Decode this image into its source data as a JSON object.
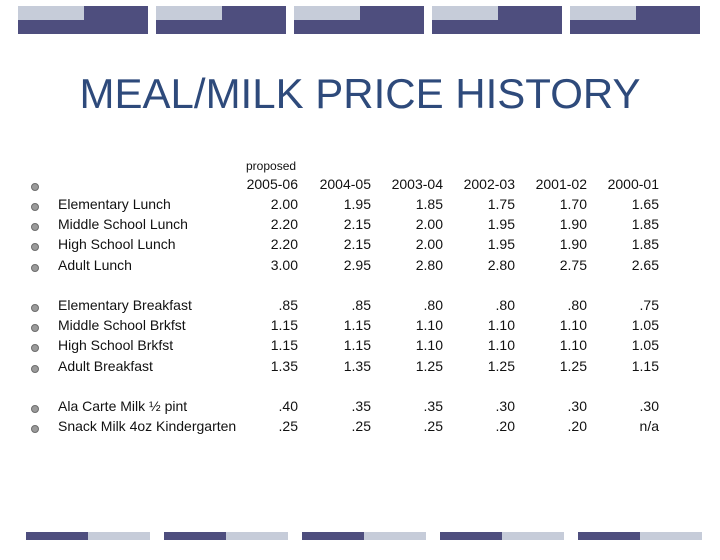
{
  "colors": {
    "title": "#2e4a7b",
    "band_light": "#c6ccd9",
    "band_dark": "#4e4e7e",
    "band_white": "#ffffff",
    "bullet": "#9a9a9a"
  },
  "title": "MEAL/MILK PRICE HISTORY",
  "proposed_label": "proposed",
  "years": [
    "2005-06",
    "2004-05",
    "2003-04",
    "2002-03",
    "2001-02",
    "2000-01"
  ],
  "groups": [
    {
      "rows": [
        {
          "label": "Elementary Lunch",
          "values": [
            "2.00",
            "1.95",
            "1.85",
            "1.75",
            "1.70",
            "1.65"
          ]
        },
        {
          "label": "Middle School Lunch",
          "values": [
            "2.20",
            "2.15",
            "2.00",
            "1.95",
            "1.90",
            "1.85"
          ]
        },
        {
          "label": "High School Lunch",
          "values": [
            "2.20",
            "2.15",
            "2.00",
            "1.95",
            "1.90",
            "1.85"
          ]
        },
        {
          "label": "Adult Lunch",
          "values": [
            "3.00",
            "2.95",
            "2.80",
            "2.80",
            "2.75",
            "2.65"
          ]
        }
      ]
    },
    {
      "rows": [
        {
          "label": "Elementary Breakfast",
          "values": [
            ".85",
            ".85",
            ".80",
            ".80",
            ".80",
            ".75"
          ]
        },
        {
          "label": "Middle School Brkfst",
          "values": [
            "1.15",
            "1.15",
            "1.10",
            "1.10",
            "1.10",
            "1.05"
          ]
        },
        {
          "label": "High School Brkfst",
          "values": [
            "1.15",
            "1.15",
            "1.10",
            "1.10",
            "1.10",
            "1.05"
          ]
        },
        {
          "label": "Adult Breakfast",
          "values": [
            "1.35",
            "1.35",
            "1.25",
            "1.25",
            "1.25",
            "1.15"
          ]
        }
      ]
    },
    {
      "rows": [
        {
          "label": "Ala Carte Milk ½ pint",
          "values": [
            ".40",
            ".35",
            ".35",
            ".30",
            ".30",
            ".30"
          ]
        },
        {
          "label": "Snack Milk 4oz Kindergarten",
          "values": [
            ".25",
            ".25",
            ".25",
            ".20",
            ".20",
            "n/a"
          ]
        }
      ]
    }
  ]
}
